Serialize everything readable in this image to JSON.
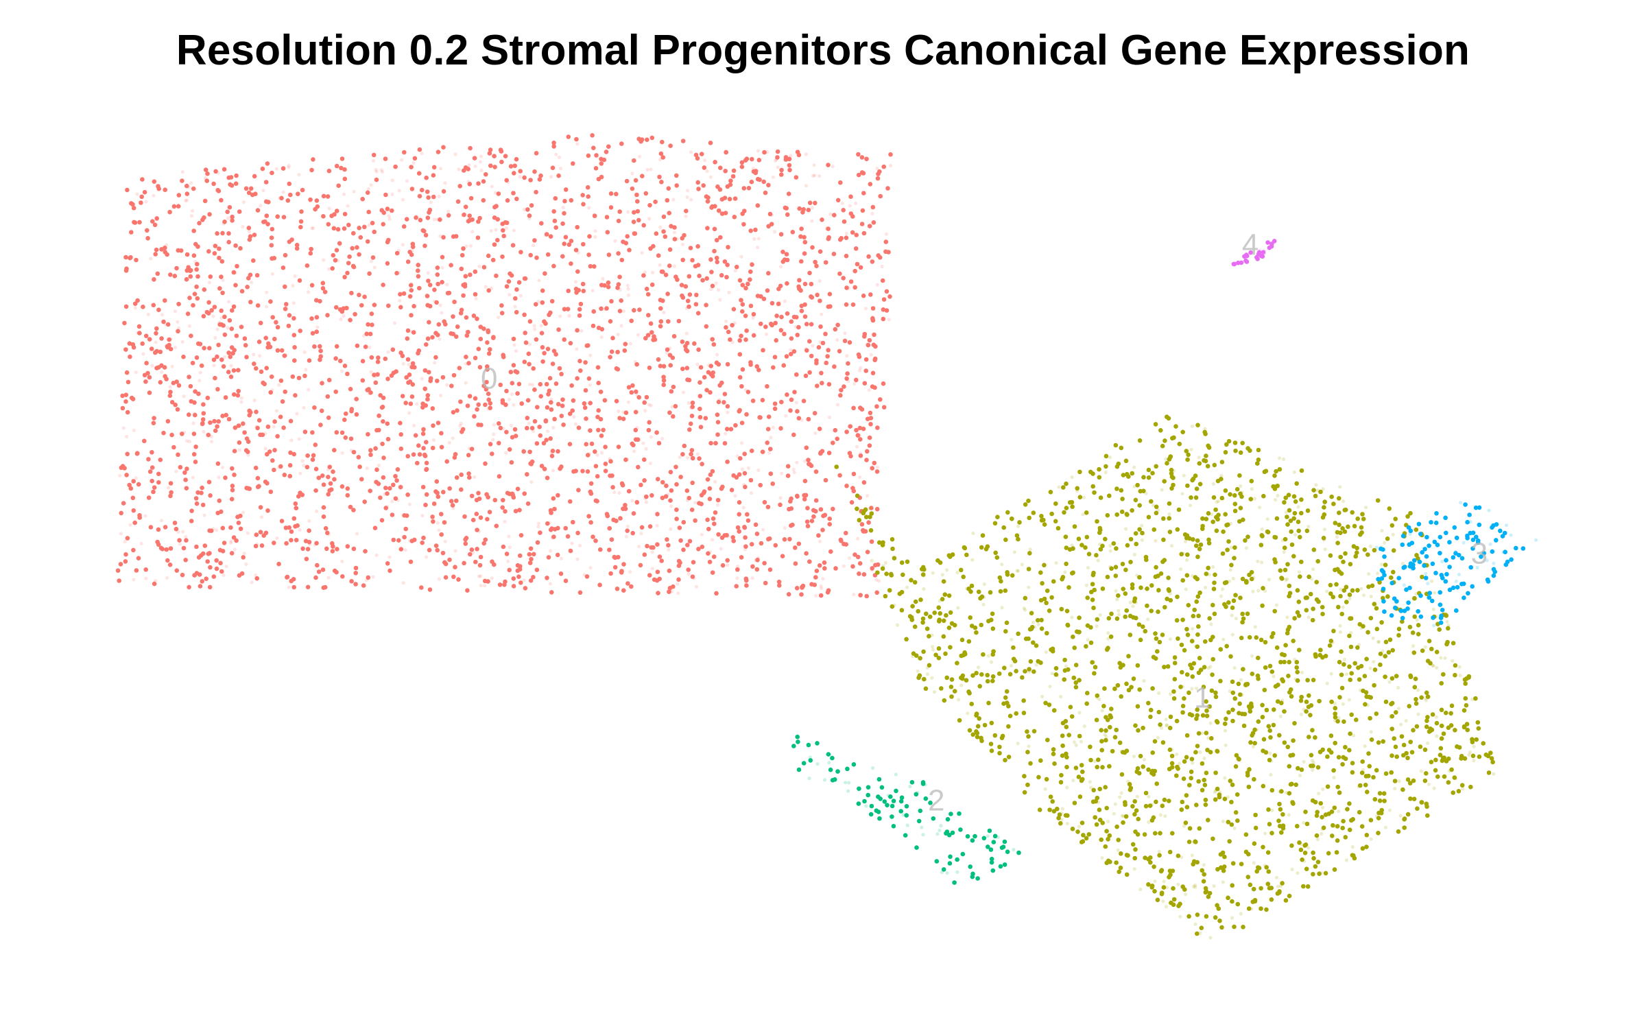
{
  "chart_data": {
    "type": "scatter",
    "title": "Resolution 0.2 Stromal Progenitors Canonical Gene Expression",
    "xlabel": "",
    "ylabel": "",
    "axes_visible": false,
    "grid": false,
    "legend": "none",
    "point_size": "small",
    "series": [
      {
        "cluster_label": "0",
        "color": "#F8766D",
        "approx_points": 3000,
        "region": [
          [
            1.1,
            7.6
          ],
          [
            1.0,
            3.6
          ],
          [
            8.2,
            3.5
          ],
          [
            8.3,
            7.8
          ],
          [
            5.5,
            8.0
          ]
        ],
        "label_position": [
          4.5,
          5.6
        ]
      },
      {
        "cluster_label": "1",
        "color": "#A3A500",
        "approx_points": 2100,
        "region": [
          [
            7.7,
            4.9
          ],
          [
            8.5,
            3.8
          ],
          [
            10.9,
            5.3
          ],
          [
            13.2,
            4.3
          ],
          [
            14.0,
            1.8
          ],
          [
            11.3,
            0.1
          ],
          [
            9.7,
            1.4
          ],
          [
            8.5,
            2.7
          ]
        ],
        "label_position": [
          11.2,
          2.5
        ]
      },
      {
        "cluster_label": "2",
        "color": "#00BF7D",
        "approx_points": 120,
        "region": [
          [
            7.3,
            2.2
          ],
          [
            8.6,
            1.7
          ],
          [
            9.5,
            1.0
          ],
          [
            9.0,
            0.6
          ],
          [
            8.2,
            1.3
          ],
          [
            7.4,
            1.8
          ]
        ],
        "label_position": [
          8.7,
          1.5
        ]
      },
      {
        "cluster_label": "3",
        "color": "#00B0F6",
        "approx_points": 160,
        "region": [
          [
            12.8,
            4.0
          ],
          [
            13.6,
            4.5
          ],
          [
            14.4,
            4.1
          ],
          [
            13.4,
            3.2
          ],
          [
            12.9,
            3.3
          ]
        ],
        "label_position": [
          13.8,
          3.9
        ]
      },
      {
        "cluster_label": "4",
        "color": "#E76BF3",
        "approx_points": 25,
        "region": [
          [
            11.4,
            6.7
          ],
          [
            11.9,
            7.0
          ],
          [
            11.8,
            6.8
          ]
        ],
        "label_position": [
          11.65,
          6.9
        ]
      }
    ]
  }
}
